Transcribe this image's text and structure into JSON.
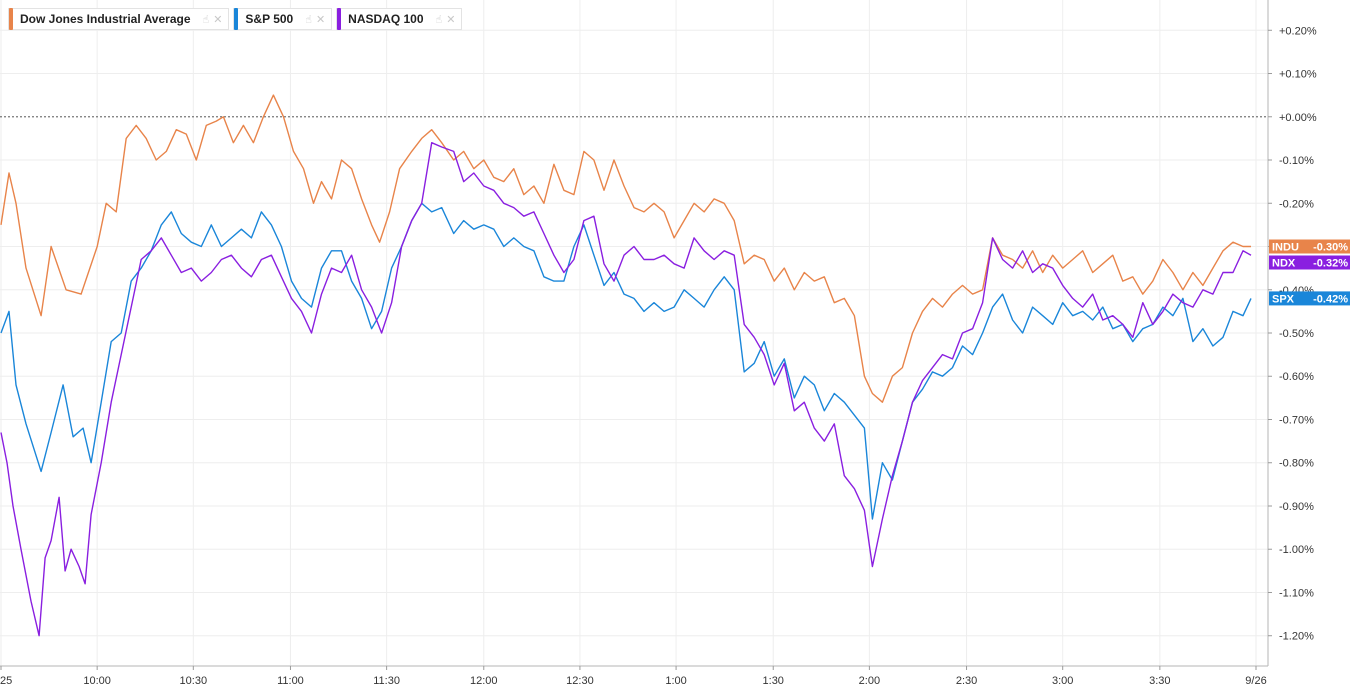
{
  "legend": {
    "items": [
      {
        "name": "Dow Jones Industrial Average",
        "color": "#e8844a"
      },
      {
        "name": "S&P 500",
        "color": "#1a86d9"
      },
      {
        "name": "NASDAQ 100",
        "color": "#8a1fe0"
      }
    ]
  },
  "chart_data": {
    "type": "line",
    "yaxis": {
      "range": [
        -1.27,
        0.27
      ],
      "ticks": [
        0.2,
        0.1,
        0.0,
        -0.1,
        -0.2,
        -0.3,
        -0.4,
        -0.5,
        -0.6,
        -0.7,
        -0.8,
        -0.9,
        -1.0,
        -1.1,
        -1.2
      ],
      "tick_labels": [
        "+0.20%",
        "+0.10%",
        "+0.00%",
        "-0.10%",
        "-0.20%",
        "-0.30%",
        "-0.40%",
        "-0.50%",
        "-0.60%",
        "-0.70%",
        "-0.80%",
        "-0.90%",
        "-1.00%",
        "-1.10%",
        "-1.20%"
      ],
      "position": "right",
      "reference_line": 0.0
    },
    "xaxis": {
      "range": [
        -1,
        1250
      ],
      "ticks": [
        {
          "t": 0,
          "label": "25"
        },
        {
          "t": 96,
          "label": "10:00"
        },
        {
          "t": 192,
          "label": "10:30"
        },
        {
          "t": 289,
          "label": "11:00"
        },
        {
          "t": 385,
          "label": "11:30"
        },
        {
          "t": 482,
          "label": "12:00"
        },
        {
          "t": 578,
          "label": "12:30"
        },
        {
          "t": 674,
          "label": "1:00"
        },
        {
          "t": 771,
          "label": "1:30"
        },
        {
          "t": 867,
          "label": "2:00"
        },
        {
          "t": 964,
          "label": "2:30"
        },
        {
          "t": 1060,
          "label": "3:00"
        },
        {
          "t": 1157,
          "label": "3:30"
        },
        {
          "t": 1253,
          "label": "9/26"
        }
      ]
    },
    "grid": true,
    "series": [
      {
        "name": "Dow Jones Industrial Average",
        "tag": "INDU",
        "last_label": "-0.30%",
        "color": "#e8844a",
        "x": [
          0,
          8,
          15,
          25,
          40,
          50,
          65,
          80,
          96,
          105,
          115,
          125,
          135,
          145,
          155,
          165,
          175,
          185,
          195,
          205,
          215,
          222,
          232,
          242,
          252,
          262,
          272,
          282,
          292,
          302,
          312,
          320,
          330,
          340,
          350,
          360,
          370,
          378,
          388,
          398,
          410,
          420,
          430,
          440,
          452,
          462,
          472,
          482,
          492,
          502,
          512,
          522,
          532,
          542,
          552,
          562,
          572,
          582,
          592,
          602,
          612,
          622,
          632,
          642,
          652,
          662,
          672,
          682,
          692,
          702,
          712,
          722,
          732,
          742,
          752,
          762,
          772,
          782,
          792,
          802,
          812,
          822,
          832,
          842,
          852,
          862,
          870,
          880,
          890,
          900,
          910,
          920,
          930,
          940,
          950,
          960,
          970,
          980,
          990,
          1000,
          1010,
          1020,
          1030,
          1040,
          1050,
          1060,
          1070,
          1080,
          1090,
          1100,
          1110,
          1120,
          1130,
          1140,
          1150,
          1160,
          1170,
          1180,
          1190,
          1200,
          1210,
          1220,
          1230,
          1240,
          1248
        ],
        "y": [
          -0.25,
          -0.13,
          -0.2,
          -0.35,
          -0.46,
          -0.3,
          -0.4,
          -0.41,
          -0.3,
          -0.2,
          -0.22,
          -0.05,
          -0.02,
          -0.05,
          -0.1,
          -0.08,
          -0.03,
          -0.04,
          -0.1,
          -0.02,
          -0.01,
          0.0,
          -0.06,
          -0.02,
          -0.06,
          0.0,
          0.05,
          0.0,
          -0.08,
          -0.12,
          -0.2,
          -0.15,
          -0.19,
          -0.1,
          -0.12,
          -0.19,
          -0.25,
          -0.29,
          -0.22,
          -0.12,
          -0.08,
          -0.05,
          -0.03,
          -0.06,
          -0.1,
          -0.08,
          -0.12,
          -0.1,
          -0.14,
          -0.15,
          -0.12,
          -0.18,
          -0.16,
          -0.2,
          -0.11,
          -0.17,
          -0.18,
          -0.08,
          -0.1,
          -0.17,
          -0.1,
          -0.16,
          -0.21,
          -0.22,
          -0.2,
          -0.22,
          -0.28,
          -0.24,
          -0.2,
          -0.22,
          -0.19,
          -0.2,
          -0.24,
          -0.34,
          -0.32,
          -0.33,
          -0.38,
          -0.35,
          -0.4,
          -0.36,
          -0.38,
          -0.37,
          -0.43,
          -0.42,
          -0.46,
          -0.6,
          -0.64,
          -0.66,
          -0.6,
          -0.58,
          -0.5,
          -0.45,
          -0.42,
          -0.44,
          -0.41,
          -0.39,
          -0.41,
          -0.4,
          -0.28,
          -0.32,
          -0.33,
          -0.35,
          -0.31,
          -0.36,
          -0.32,
          -0.35,
          -0.33,
          -0.31,
          -0.36,
          -0.34,
          -0.32,
          -0.38,
          -0.37,
          -0.41,
          -0.38,
          -0.33,
          -0.36,
          -0.4,
          -0.36,
          -0.39,
          -0.35,
          -0.31,
          -0.29,
          -0.3,
          -0.3
        ]
      },
      {
        "name": "S&P 500",
        "tag": "SPX",
        "last_label": "-0.42%",
        "color": "#1a86d9",
        "x": [
          0,
          8,
          15,
          25,
          40,
          50,
          62,
          72,
          82,
          90,
          100,
          110,
          120,
          130,
          140,
          150,
          160,
          170,
          180,
          190,
          200,
          210,
          220,
          230,
          240,
          250,
          260,
          270,
          280,
          290,
          300,
          310,
          320,
          330,
          340,
          350,
          360,
          370,
          380,
          390,
          400,
          410,
          420,
          430,
          440,
          452,
          462,
          472,
          482,
          492,
          502,
          512,
          522,
          532,
          542,
          552,
          562,
          572,
          582,
          592,
          602,
          612,
          622,
          632,
          642,
          652,
          662,
          672,
          682,
          692,
          702,
          712,
          722,
          732,
          742,
          752,
          762,
          772,
          782,
          792,
          802,
          812,
          822,
          832,
          842,
          852,
          862,
          870,
          880,
          890,
          900,
          910,
          920,
          930,
          940,
          950,
          960,
          970,
          980,
          990,
          1000,
          1010,
          1020,
          1030,
          1040,
          1050,
          1060,
          1070,
          1080,
          1090,
          1100,
          1110,
          1120,
          1130,
          1140,
          1150,
          1160,
          1170,
          1180,
          1190,
          1200,
          1210,
          1220,
          1230,
          1240,
          1248
        ],
        "y": [
          -0.5,
          -0.45,
          -0.62,
          -0.71,
          -0.82,
          -0.73,
          -0.62,
          -0.74,
          -0.72,
          -0.8,
          -0.66,
          -0.52,
          -0.5,
          -0.38,
          -0.35,
          -0.31,
          -0.25,
          -0.22,
          -0.27,
          -0.29,
          -0.3,
          -0.25,
          -0.3,
          -0.28,
          -0.26,
          -0.28,
          -0.22,
          -0.25,
          -0.3,
          -0.38,
          -0.42,
          -0.44,
          -0.35,
          -0.31,
          -0.31,
          -0.38,
          -0.42,
          -0.49,
          -0.45,
          -0.35,
          -0.3,
          -0.24,
          -0.2,
          -0.22,
          -0.21,
          -0.27,
          -0.24,
          -0.26,
          -0.25,
          -0.26,
          -0.3,
          -0.28,
          -0.3,
          -0.31,
          -0.37,
          -0.38,
          -0.38,
          -0.3,
          -0.25,
          -0.32,
          -0.39,
          -0.36,
          -0.41,
          -0.42,
          -0.45,
          -0.43,
          -0.45,
          -0.44,
          -0.4,
          -0.42,
          -0.44,
          -0.4,
          -0.37,
          -0.4,
          -0.59,
          -0.57,
          -0.52,
          -0.6,
          -0.56,
          -0.65,
          -0.6,
          -0.62,
          -0.68,
          -0.64,
          -0.66,
          -0.69,
          -0.72,
          -0.93,
          -0.8,
          -0.84,
          -0.75,
          -0.66,
          -0.63,
          -0.59,
          -0.6,
          -0.58,
          -0.53,
          -0.55,
          -0.5,
          -0.44,
          -0.41,
          -0.47,
          -0.5,
          -0.44,
          -0.46,
          -0.48,
          -0.43,
          -0.46,
          -0.45,
          -0.47,
          -0.44,
          -0.49,
          -0.48,
          -0.52,
          -0.49,
          -0.48,
          -0.44,
          -0.46,
          -0.42,
          -0.52,
          -0.49,
          -0.53,
          -0.51,
          -0.45,
          -0.46,
          -0.42
        ]
      },
      {
        "name": "NASDAQ 100",
        "tag": "NDX",
        "last_label": "-0.32%",
        "color": "#8a1fe0",
        "x": [
          0,
          6,
          12,
          20,
          30,
          38,
          44,
          50,
          58,
          64,
          70,
          78,
          84,
          90,
          100,
          110,
          120,
          130,
          140,
          150,
          160,
          170,
          180,
          190,
          200,
          210,
          220,
          230,
          240,
          250,
          260,
          270,
          280,
          290,
          300,
          310,
          320,
          330,
          340,
          350,
          360,
          370,
          380,
          390,
          400,
          410,
          420,
          430,
          440,
          452,
          462,
          472,
          482,
          492,
          502,
          512,
          522,
          532,
          542,
          552,
          562,
          572,
          582,
          592,
          602,
          612,
          622,
          632,
          642,
          652,
          662,
          672,
          682,
          692,
          702,
          712,
          722,
          732,
          742,
          752,
          762,
          772,
          782,
          792,
          802,
          812,
          822,
          832,
          842,
          852,
          862,
          870,
          880,
          890,
          900,
          910,
          920,
          930,
          940,
          950,
          960,
          970,
          980,
          990,
          1000,
          1010,
          1020,
          1030,
          1040,
          1050,
          1060,
          1070,
          1080,
          1090,
          1100,
          1110,
          1120,
          1130,
          1140,
          1150,
          1160,
          1170,
          1180,
          1190,
          1200,
          1210,
          1220,
          1230,
          1240,
          1248
        ],
        "y": [
          -0.73,
          -0.8,
          -0.9,
          -1.0,
          -1.12,
          -1.2,
          -1.02,
          -0.98,
          -0.88,
          -1.05,
          -1.0,
          -1.04,
          -1.08,
          -0.92,
          -0.8,
          -0.66,
          -0.55,
          -0.44,
          -0.33,
          -0.31,
          -0.28,
          -0.32,
          -0.36,
          -0.35,
          -0.38,
          -0.36,
          -0.33,
          -0.32,
          -0.35,
          -0.37,
          -0.33,
          -0.32,
          -0.37,
          -0.42,
          -0.45,
          -0.5,
          -0.41,
          -0.35,
          -0.36,
          -0.32,
          -0.4,
          -0.44,
          -0.5,
          -0.43,
          -0.3,
          -0.24,
          -0.2,
          -0.06,
          -0.07,
          -0.08,
          -0.15,
          -0.13,
          -0.16,
          -0.17,
          -0.2,
          -0.21,
          -0.23,
          -0.22,
          -0.27,
          -0.32,
          -0.36,
          -0.33,
          -0.24,
          -0.23,
          -0.34,
          -0.38,
          -0.32,
          -0.3,
          -0.33,
          -0.33,
          -0.32,
          -0.34,
          -0.35,
          -0.28,
          -0.31,
          -0.33,
          -0.31,
          -0.32,
          -0.48,
          -0.51,
          -0.55,
          -0.62,
          -0.57,
          -0.68,
          -0.66,
          -0.72,
          -0.75,
          -0.71,
          -0.83,
          -0.86,
          -0.91,
          -1.04,
          -0.93,
          -0.83,
          -0.75,
          -0.66,
          -0.61,
          -0.58,
          -0.55,
          -0.56,
          -0.5,
          -0.49,
          -0.43,
          -0.28,
          -0.33,
          -0.35,
          -0.31,
          -0.36,
          -0.34,
          -0.35,
          -0.39,
          -0.42,
          -0.44,
          -0.41,
          -0.47,
          -0.46,
          -0.48,
          -0.51,
          -0.43,
          -0.48,
          -0.45,
          -0.41,
          -0.43,
          -0.44,
          -0.4,
          -0.41,
          -0.36,
          -0.36,
          -0.31,
          -0.32
        ]
      }
    ]
  }
}
